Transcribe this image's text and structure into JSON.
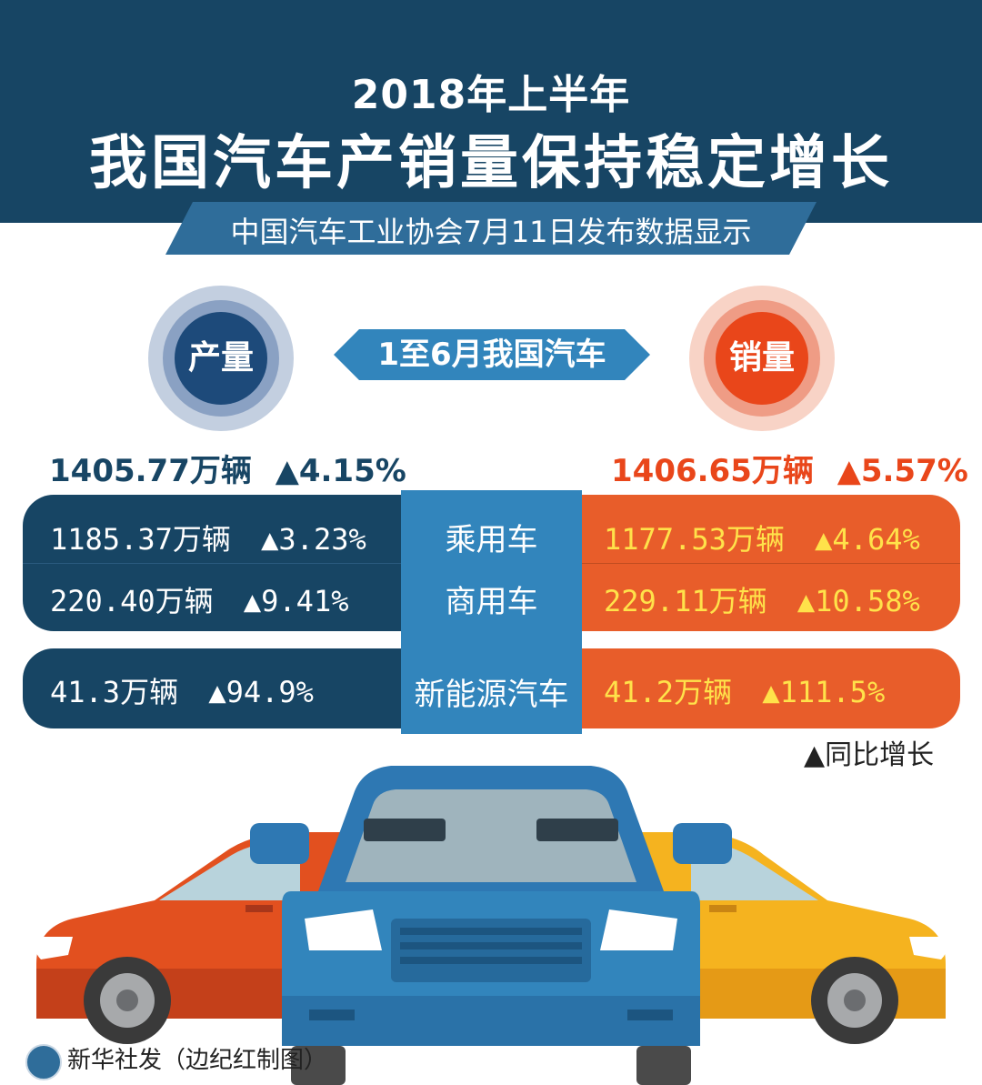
{
  "header": {
    "title_line1": "2018年上半年",
    "title_line2": "我国汽车产销量保持稳定增长",
    "subtitle": "中国汽车工业协会7月11日发布数据显示"
  },
  "center_tag": "1至6月我国汽车",
  "production": {
    "label": "产量",
    "total": "1405.77万辆",
    "total_growth": "▲4.15%"
  },
  "sales": {
    "label": "销量",
    "total": "1406.65万辆",
    "total_growth": "▲5.57%"
  },
  "rows": [
    {
      "category": "乘用车",
      "prod_value": "1185.37万辆",
      "prod_growth": "▲3.23%",
      "sale_value": "1177.53万辆",
      "sale_growth": "▲4.64%"
    },
    {
      "category": "商用车",
      "prod_value": "220.40万辆",
      "prod_growth": "▲9.41%",
      "sale_value": "229.11万辆",
      "sale_growth": "▲10.58%"
    },
    {
      "category": "新能源汽车",
      "prod_value": "41.3万辆",
      "prod_growth": "▲94.9%",
      "sale_value": "41.2万辆",
      "sale_growth": "▲111.5%"
    }
  ],
  "legend": "▲同比增长",
  "footer": "新华社发（边纪红制图）",
  "colors": {
    "navy": "#174564",
    "blue": "#3285bc",
    "orange": "#e85d2a",
    "red_orange": "#e9461a",
    "yellow": "#ffe24a"
  },
  "illustration": {
    "left_car": "red-car-icon",
    "center_car": "blue-car-icon",
    "right_car": "yellow-car-icon"
  }
}
